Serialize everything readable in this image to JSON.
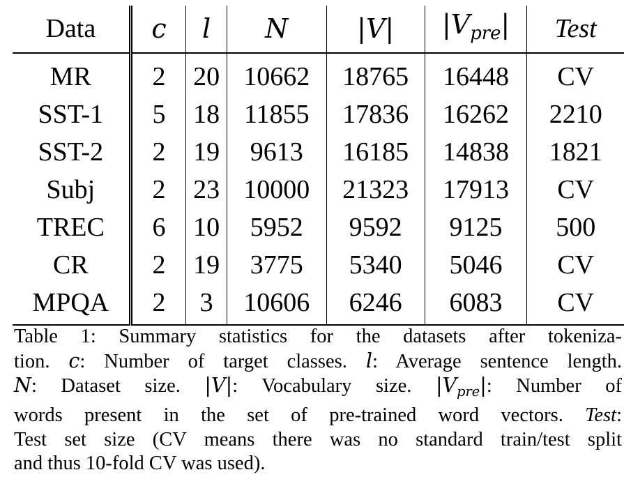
{
  "table": {
    "headers": [
      "Data",
      "c",
      "l",
      "N",
      "|V|",
      "|V",
      "pre",
      "|",
      "Test"
    ],
    "header_labels": {
      "data": "Data",
      "c": "c",
      "l": "l",
      "N": "N",
      "V": "|V|",
      "Vpre_open": "|V",
      "Vpre_sub": "pre",
      "Vpre_close": "|",
      "test": "Test"
    },
    "rows": [
      {
        "data": "MR",
        "c": "2",
        "l": "20",
        "N": "10662",
        "V": "18765",
        "Vpre": "16448",
        "test": "CV"
      },
      {
        "data": "SST-1",
        "c": "5",
        "l": "18",
        "N": "11855",
        "V": "17836",
        "Vpre": "16262",
        "test": "2210"
      },
      {
        "data": "SST-2",
        "c": "2",
        "l": "19",
        "N": "9613",
        "V": "16185",
        "Vpre": "14838",
        "test": "1821"
      },
      {
        "data": "Subj",
        "c": "2",
        "l": "23",
        "N": "10000",
        "V": "21323",
        "Vpre": "17913",
        "test": "CV"
      },
      {
        "data": "TREC",
        "c": "6",
        "l": "10",
        "N": "5952",
        "V": "9592",
        "Vpre": "9125",
        "test": "500"
      },
      {
        "data": "CR",
        "c": "2",
        "l": "19",
        "N": "3775",
        "V": "5340",
        "Vpre": "5046",
        "test": "CV"
      },
      {
        "data": "MPQA",
        "c": "2",
        "l": "3",
        "N": "10606",
        "V": "6246",
        "Vpre": "6083",
        "test": "CV"
      }
    ]
  },
  "caption": {
    "l1_a": "Table 1: Summary statistics for the datasets after tokeniza-",
    "l2_a": "tion. ",
    "l2_c": "c",
    "l2_b": ": Number of target classes. ",
    "l2_l": "l",
    "l2_d": ": Average sentence length.",
    "l3_N": "N",
    "l3_a": ": Dataset size. ",
    "l3_V": "|V|",
    "l3_b": ": Vocabulary size. ",
    "l3_Vpre_open": "|V",
    "l3_Vpre_sub": "pre",
    "l3_Vpre_close": "|",
    "l3_c": ": Number of",
    "l4_a": "words present in the set of pre-trained word vectors. ",
    "l4_test": "Test",
    "l4_b": ":",
    "l5_a": "Test set size (CV means there was no standard train/test split",
    "l6_a": "and thus 10-fold CV was used)."
  }
}
